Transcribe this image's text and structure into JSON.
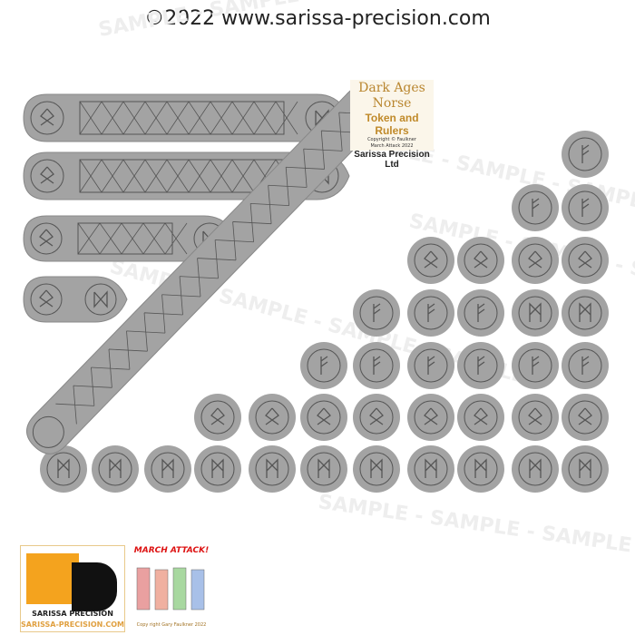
{
  "header": {
    "copyright": "©2022 www.sarissa-precision.com"
  },
  "title_box": {
    "line1": "Dark Ages",
    "line2": "Norse",
    "line3": "Token and Rulers",
    "line4": "Copyright © Faulkner",
    "line5": "March Attack 2022",
    "line6": "Sarissa Precision Ltd"
  },
  "watermark": "SAMPLE - SAMPLE - SAMPLE - SAMPLE",
  "logos": {
    "sp_name": "SARISSA PRECISION",
    "sp_url": "SARISSA-PRECISION.COM",
    "sp_letters": "SP",
    "ma_title": "MARCH ATTACK!",
    "ma_copy": "Copy right Gary Faulkner 2022"
  },
  "colors": {
    "token": "#a3a3a3",
    "line": "#555555",
    "accent": "#f4a31e"
  }
}
